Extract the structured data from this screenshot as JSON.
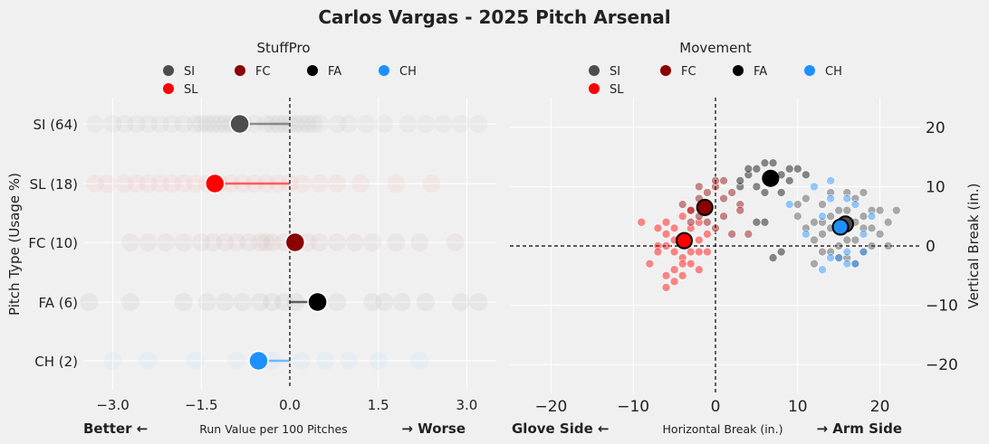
{
  "title": "Carlos Vargas - 2025 Pitch Arsenal",
  "pitch_colors": {
    "SI": "#4d4d4d",
    "SL": "#ff0000",
    "FC": "#8b0000",
    "FA": "#000000",
    "CH": "#1e90ff"
  },
  "chart_data": [
    {
      "type": "scatter",
      "title": "StuffPro",
      "legend": {
        "placement": "top",
        "entries": [
          "SI",
          "FC",
          "FA",
          "CH",
          "SL"
        ]
      },
      "xlabel": "Run Value per 100 Pitches",
      "xlabel_left": "Better ←",
      "xlabel_right": "→ Worse",
      "ylabel": "Pitch Type (Usage %)",
      "xlim": [
        -3.5,
        3.5
      ],
      "xticks": [
        "−3.0",
        "−1.5",
        "0.0",
        "1.5",
        "3.0"
      ],
      "xtick_values": [
        -3,
        -1.5,
        0,
        1.5,
        3
      ],
      "grid": true,
      "reference_line_x": 0,
      "categories": [
        "SI (64)",
        "SL (18)",
        "FC (10)",
        "FA (6)",
        "CH (2)"
      ],
      "pitch_types": [
        "SI",
        "SL",
        "FC",
        "FA",
        "CH"
      ],
      "means": [
        -0.85,
        -1.27,
        0.09,
        0.47,
        -0.53
      ],
      "pitch_values": {
        "SI": [
          -3.3,
          -3.0,
          -2.8,
          -2.6,
          -2.4,
          -2.2,
          -2.0,
          -1.8,
          -1.6,
          -1.5,
          -1.4,
          -1.3,
          -1.2,
          -1.1,
          -1.0,
          -0.9,
          -0.8,
          -0.6,
          -0.4,
          -0.3,
          -0.2,
          -0.1,
          0.0,
          0.1,
          0.2,
          0.3,
          0.4,
          0.5,
          0.8,
          1.0,
          1.3,
          1.6,
          2.0,
          2.3,
          2.6,
          2.9,
          3.2
        ],
        "SL": [
          -3.3,
          -3.1,
          -2.8,
          -2.6,
          -2.4,
          -2.2,
          -2.0,
          -1.8,
          -1.6,
          -1.4,
          -1.2,
          -1.0,
          -0.8,
          -0.6,
          -0.4,
          -0.2,
          0.0,
          0.2,
          0.5,
          0.8,
          1.2,
          1.8,
          2.4
        ],
        "FC": [
          -2.7,
          -2.4,
          -2.1,
          -1.8,
          -1.5,
          -1.3,
          -1.1,
          -0.9,
          -0.7,
          -0.5,
          -0.4,
          -0.3,
          -0.1,
          0.1,
          0.3,
          0.5,
          0.8,
          1.1,
          1.4,
          1.8,
          2.2,
          2.8
        ],
        "FA": [
          -3.4,
          -2.7,
          -1.8,
          -1.4,
          -1.1,
          -0.8,
          -0.5,
          -0.3,
          -0.1,
          0.1,
          0.5,
          0.8,
          1.4,
          1.6,
          1.9,
          2.3,
          2.9,
          3.2
        ],
        "CH": [
          -3.0,
          -2.4,
          -1.6,
          -0.9,
          -0.3,
          0.2,
          0.6,
          1.0,
          1.5,
          2.2
        ]
      }
    },
    {
      "type": "scatter",
      "title": "Movement",
      "legend": {
        "placement": "top",
        "entries": [
          "SI",
          "FC",
          "FA",
          "CH",
          "SL"
        ]
      },
      "xlabel": "Horizontal Break (in.)",
      "xlabel_left": "Glove Side ←",
      "xlabel_right": "→ Arm Side",
      "ylabel": "Vertical Break (in.)",
      "xlim": [
        -25,
        25
      ],
      "ylim": [
        -25,
        25
      ],
      "xticks": [
        "−20",
        "−10",
        "0",
        "10",
        "20"
      ],
      "xtick_values": [
        -20,
        -10,
        0,
        10,
        20
      ],
      "yticks": [
        "20",
        "10",
        "0",
        "−10",
        "−20"
      ],
      "ytick_values": [
        20,
        10,
        0,
        -10,
        -20
      ],
      "grid": true,
      "reference_lines": {
        "x": 0,
        "y": 0
      },
      "means": {
        "SI": [
          15.8,
          3.7
        ],
        "CH": [
          15.2,
          3.2
        ],
        "SL": [
          -3.8,
          0.9
        ],
        "FC": [
          -1.3,
          6.5
        ],
        "FA": [
          6.7,
          11.4
        ]
      },
      "points": {
        "SL": [
          [
            -4,
            1
          ],
          [
            -5,
            -1
          ],
          [
            -6,
            2
          ],
          [
            -3,
            3
          ],
          [
            -7,
            0
          ],
          [
            -5,
            -4
          ],
          [
            -2,
            4
          ],
          [
            -4,
            -2
          ],
          [
            -6,
            -5
          ],
          [
            -3,
            -1
          ],
          [
            -8,
            -3
          ],
          [
            -9,
            4
          ],
          [
            -5,
            3
          ],
          [
            -2,
            -1
          ],
          [
            -4,
            5
          ],
          [
            -6,
            -7
          ],
          [
            -1,
            2
          ],
          [
            -3,
            -3
          ],
          [
            -7,
            -1
          ],
          [
            -5,
            1
          ],
          [
            -2,
            -4
          ],
          [
            -4,
            -5
          ],
          [
            -1,
            -1
          ],
          [
            -6,
            0
          ],
          [
            -3,
            6
          ],
          [
            -7,
            3
          ],
          [
            -5,
            -6
          ],
          [
            -4,
            -3
          ],
          [
            -2,
            1
          ],
          [
            -6,
            4
          ]
        ],
        "FC": [
          [
            -1,
            6.5
          ],
          [
            -2,
            8
          ],
          [
            0,
            10
          ],
          [
            -3,
            6
          ],
          [
            1,
            8
          ],
          [
            -1,
            4
          ],
          [
            0,
            11
          ],
          [
            2,
            9
          ],
          [
            -2,
            5
          ],
          [
            1,
            5
          ],
          [
            3,
            7
          ],
          [
            0,
            3
          ],
          [
            -1,
            9
          ],
          [
            2,
            2
          ],
          [
            4,
            2
          ],
          [
            -4,
            7
          ],
          [
            -3,
            4
          ],
          [
            1,
            11
          ],
          [
            -2,
            10
          ],
          [
            3,
            6
          ]
        ],
        "FA": [
          [
            7,
            11
          ],
          [
            5,
            13
          ],
          [
            6,
            14
          ],
          [
            8,
            12
          ],
          [
            3,
            10
          ],
          [
            4,
            12
          ],
          [
            7,
            14
          ],
          [
            9,
            13
          ],
          [
            5,
            10
          ],
          [
            6,
            9
          ],
          [
            8,
            9
          ],
          [
            10,
            13
          ],
          [
            3,
            11
          ],
          [
            7,
            -2
          ],
          [
            6,
            4
          ],
          [
            4,
            13
          ],
          [
            9,
            11
          ],
          [
            8,
            -1
          ],
          [
            11,
            12
          ],
          [
            5,
            4
          ]
        ],
        "SI": [
          [
            15,
            3
          ],
          [
            13,
            2
          ],
          [
            17,
            4
          ],
          [
            14,
            5
          ],
          [
            16,
            1
          ],
          [
            18,
            3
          ],
          [
            12,
            4
          ],
          [
            19,
            6
          ],
          [
            20,
            2
          ],
          [
            14,
            -1
          ],
          [
            16,
            6
          ],
          [
            13,
            7
          ],
          [
            17,
            8
          ],
          [
            15,
            0
          ],
          [
            18,
            -1
          ],
          [
            11,
            3
          ],
          [
            12,
            1
          ],
          [
            19,
            0
          ],
          [
            21,
            4
          ],
          [
            16,
            -2
          ],
          [
            14,
            3
          ],
          [
            17,
            1
          ],
          [
            15,
            6
          ],
          [
            13,
            -1
          ],
          [
            18,
            5
          ],
          [
            20,
            6
          ],
          [
            12,
            -3
          ],
          [
            17,
            -3
          ],
          [
            10,
            5
          ],
          [
            11,
            8
          ],
          [
            16,
            9
          ],
          [
            18,
            9
          ],
          [
            14,
            9
          ],
          [
            21,
            0
          ],
          [
            22,
            6
          ],
          [
            15,
            -2
          ],
          [
            19,
            3
          ],
          [
            13,
            4
          ],
          [
            16,
            4
          ],
          [
            10,
            7
          ]
        ],
        "CH": [
          [
            15,
            3
          ],
          [
            13,
            -4
          ],
          [
            14,
            -2
          ],
          [
            16,
            -1
          ],
          [
            17,
            -3
          ],
          [
            18,
            2
          ],
          [
            12,
            10
          ],
          [
            14,
            8
          ],
          [
            16,
            8
          ],
          [
            19,
            5
          ],
          [
            11,
            2
          ],
          [
            13,
            5
          ],
          [
            17,
            7
          ],
          [
            15,
            -2
          ],
          [
            16,
            -3
          ],
          [
            9,
            7
          ],
          [
            14,
            11
          ],
          [
            18,
            -1
          ]
        ]
      }
    }
  ]
}
